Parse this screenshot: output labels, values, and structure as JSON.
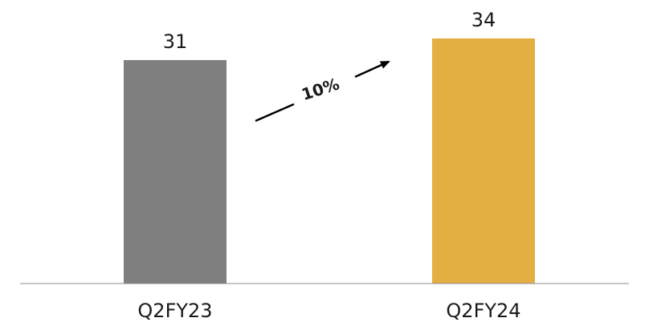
{
  "chart_data": {
    "type": "bar",
    "title": "",
    "xlabel": "",
    "ylabel": "",
    "categories": [
      "Q2FY23",
      "Q2FY24"
    ],
    "values": [
      31,
      34
    ],
    "data_labels": [
      "31",
      "34"
    ],
    "bar_colors": [
      "#7f7f7f",
      "#e3af43"
    ],
    "ylim": [
      0,
      34
    ],
    "grid": false,
    "legend": "none",
    "annotation": {
      "text": "10%",
      "arrow_color": "#000000",
      "from_category": "Q2FY23",
      "to_category": "Q2FY24"
    }
  }
}
